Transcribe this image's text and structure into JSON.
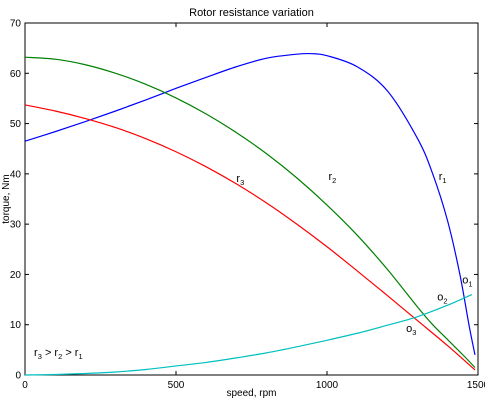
{
  "chart_data": {
    "type": "line",
    "title": "Rotor resistance variation",
    "xlabel": "speed, rpm",
    "ylabel": "torque, Nm",
    "xlim": [
      0,
      1500
    ],
    "ylim": [
      0,
      70
    ],
    "xticks": [
      0,
      500,
      1000,
      1500
    ],
    "yticks": [
      0,
      10,
      20,
      30,
      40,
      50,
      60,
      70
    ],
    "grid": false,
    "series": [
      {
        "name": "r1",
        "color": "#0000ff",
        "x": [
          0,
          100,
          200,
          300,
          400,
          500,
          600,
          700,
          800,
          900,
          950,
          1000,
          1100,
          1200,
          1300,
          1350,
          1400,
          1440,
          1470,
          1490
        ],
        "y": [
          46.5,
          48.4,
          50.4,
          52.5,
          54.7,
          57.0,
          59.2,
          61.3,
          63.0,
          63.8,
          63.9,
          63.5,
          61.3,
          56.5,
          47.0,
          40.0,
          30.5,
          20.0,
          10.0,
          4.0
        ]
      },
      {
        "name": "r2",
        "color": "#008000",
        "x": [
          0,
          100,
          200,
          300,
          400,
          500,
          600,
          700,
          800,
          900,
          1000,
          1100,
          1200,
          1300,
          1350,
          1400,
          1450,
          1490
        ],
        "y": [
          63.2,
          62.8,
          61.7,
          60.0,
          57.8,
          55.1,
          51.9,
          48.2,
          44.0,
          39.2,
          33.8,
          27.8,
          21.0,
          13.5,
          10.0,
          7.0,
          4.0,
          1.5
        ]
      },
      {
        "name": "r3",
        "color": "#ff0000",
        "x": [
          0,
          100,
          200,
          300,
          400,
          500,
          600,
          700,
          800,
          900,
          1000,
          1100,
          1200,
          1300,
          1400,
          1490
        ],
        "y": [
          53.7,
          52.5,
          51.0,
          49.2,
          47.0,
          44.4,
          41.4,
          38.0,
          34.2,
          30.0,
          25.5,
          20.7,
          15.8,
          10.8,
          5.8,
          1.0
        ]
      },
      {
        "name": "o",
        "color": "#00bfbf",
        "x": [
          0,
          100,
          200,
          300,
          400,
          500,
          600,
          700,
          800,
          900,
          1000,
          1100,
          1200,
          1300,
          1400,
          1480
        ],
        "y": [
          0.0,
          0.1,
          0.3,
          0.6,
          1.1,
          1.8,
          2.5,
          3.4,
          4.4,
          5.6,
          6.9,
          8.3,
          9.9,
          11.6,
          13.9,
          16.0
        ]
      }
    ],
    "annotations": [
      {
        "main": "r",
        "sub": "1",
        "x": 1370,
        "y": 38.8,
        "color": "#000000"
      },
      {
        "main": "r",
        "sub": "2",
        "x": 1005,
        "y": 38.8,
        "color": "#000000"
      },
      {
        "main": "r",
        "sub": "3",
        "x": 700,
        "y": 38.4,
        "color": "#000000"
      },
      {
        "main": "o",
        "sub": "1",
        "x": 1448,
        "y": 18.2,
        "color": "#000000"
      },
      {
        "main": "o",
        "sub": "2",
        "x": 1365,
        "y": 14.8,
        "color": "#000000"
      },
      {
        "main": "o",
        "sub": "3",
        "x": 1262,
        "y": 8.6,
        "color": "#000000"
      }
    ],
    "inequality": {
      "parts": [
        {
          "main": "r",
          "sub": "3"
        },
        {
          "main": " > r",
          "sub": "2"
        },
        {
          "main": " > r",
          "sub": "1"
        }
      ],
      "x": 30,
      "y": 3.8
    }
  }
}
